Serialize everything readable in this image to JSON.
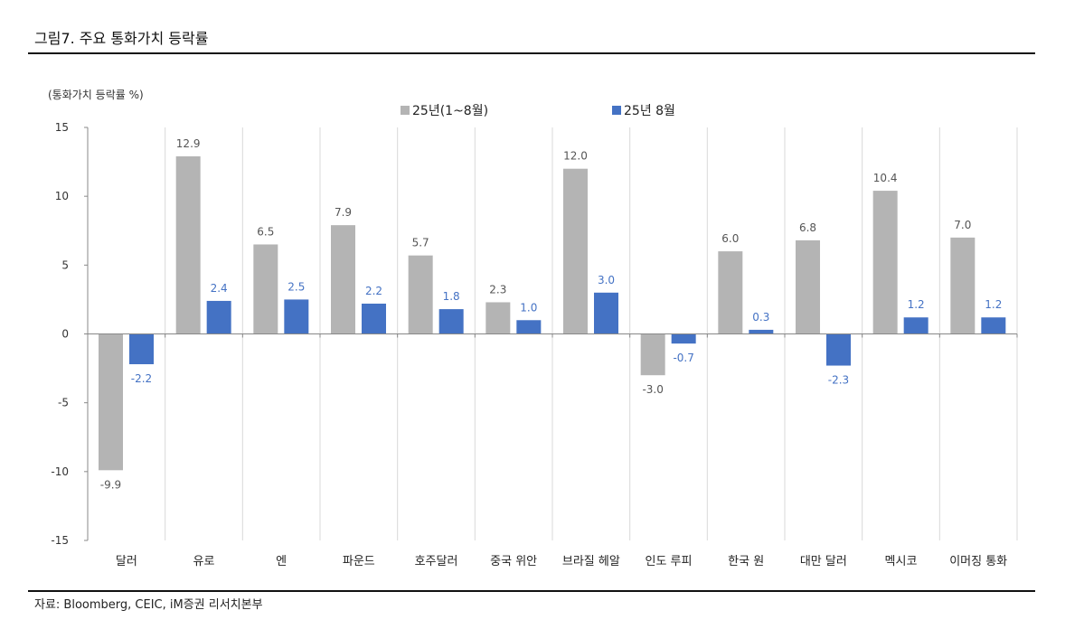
{
  "figure": {
    "title": "그림7.   주요 통화가치 등락률",
    "unit_label": "(통화가치 등락률 %)",
    "source": "자료: Bloomberg, CEIC, iM증권  리서치본부"
  },
  "colors": {
    "series_gray": "#b4b4b4",
    "series_blue": "#4472c4",
    "gridline": "#d9d9d9",
    "axis": "#888888"
  },
  "chart_data": {
    "type": "bar",
    "title": "주요 통화가치 등락률",
    "xlabel": "",
    "ylabel": "(통화가치 등락률 %)",
    "ylim": [
      -15,
      15
    ],
    "yticks": [
      15,
      10,
      5,
      0,
      -5,
      -10,
      -15
    ],
    "grid": "vertical category separators",
    "legend_position": "top-center",
    "categories": [
      "달러",
      "유로",
      "엔",
      "파운드",
      "호주달러",
      "중국 위안",
      "브라질 헤알",
      "인도 루피",
      "한국 원",
      "대만 달러",
      "멕시코",
      "이머징 통화"
    ],
    "series": [
      {
        "name": "25년(1~8월)",
        "color": "#b4b4b4",
        "values": [
          -9.9,
          12.9,
          6.5,
          7.9,
          5.7,
          2.3,
          12.0,
          -3.0,
          6.0,
          6.8,
          10.4,
          7.0
        ]
      },
      {
        "name": "25년 8월",
        "color": "#4472c4",
        "values": [
          -2.2,
          2.4,
          2.5,
          2.2,
          1.8,
          1.0,
          3.0,
          -0.7,
          0.3,
          -2.3,
          1.2,
          1.2
        ]
      }
    ]
  }
}
